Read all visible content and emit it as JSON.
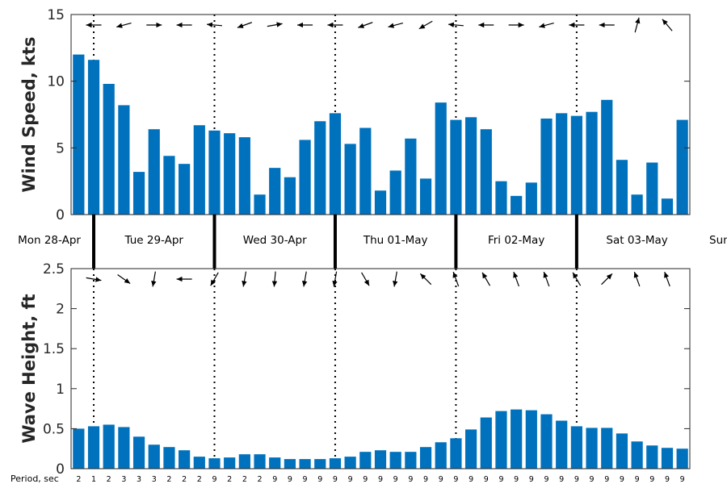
{
  "chart_data": [
    {
      "type": "bar",
      "name": "wind",
      "ylabel": "Wind Speed, kts",
      "ylim": [
        0,
        15
      ],
      "yticks": [
        0,
        5,
        10,
        15
      ],
      "color": "#0072BD",
      "values": [
        12.0,
        11.6,
        9.8,
        8.2,
        3.2,
        6.4,
        4.4,
        3.8,
        6.7,
        6.3,
        6.1,
        5.8,
        1.5,
        3.5,
        2.8,
        5.6,
        7.0,
        7.6,
        5.3,
        6.5,
        1.8,
        3.3,
        5.7,
        2.7,
        8.4,
        7.1,
        7.3,
        6.4,
        2.5,
        1.4,
        2.4,
        7.2,
        7.6,
        7.4,
        7.7,
        8.6,
        4.1,
        1.5,
        3.9,
        1.2,
        7.1
      ],
      "direction_arrows": [
        {
          "i": 1,
          "deg": 180
        },
        {
          "i": 3,
          "deg": 195
        },
        {
          "i": 5,
          "deg": 0
        },
        {
          "i": 7,
          "deg": 180
        },
        {
          "i": 9,
          "deg": 175
        },
        {
          "i": 11,
          "deg": 200
        },
        {
          "i": 13,
          "deg": 10
        },
        {
          "i": 15,
          "deg": 180
        },
        {
          "i": 17,
          "deg": 180
        },
        {
          "i": 19,
          "deg": 200
        },
        {
          "i": 21,
          "deg": 195
        },
        {
          "i": 23,
          "deg": 210
        },
        {
          "i": 25,
          "deg": 175
        },
        {
          "i": 27,
          "deg": 180
        },
        {
          "i": 29,
          "deg": 0
        },
        {
          "i": 31,
          "deg": 195
        },
        {
          "i": 33,
          "deg": 180
        },
        {
          "i": 35,
          "deg": 180
        },
        {
          "i": 37,
          "deg": 75
        },
        {
          "i": 39,
          "deg": 130
        }
      ]
    },
    {
      "type": "bar",
      "name": "waves",
      "ylabel": "Wave Height, ft",
      "ylim": [
        0,
        2.5
      ],
      "yticks": [
        0,
        0.5,
        1,
        1.5,
        2,
        2.5
      ],
      "color": "#0072BD",
      "values": [
        0.5,
        0.53,
        0.55,
        0.52,
        0.4,
        0.3,
        0.27,
        0.23,
        0.15,
        0.13,
        0.14,
        0.18,
        0.18,
        0.14,
        0.12,
        0.12,
        0.12,
        0.13,
        0.15,
        0.21,
        0.23,
        0.21,
        0.21,
        0.27,
        0.33,
        0.38,
        0.49,
        0.64,
        0.72,
        0.74,
        0.73,
        0.68,
        0.6,
        0.53,
        0.51,
        0.51,
        0.44,
        0.34,
        0.29,
        0.26,
        0.25
      ],
      "direction_arrows": [
        {
          "i": 1,
          "deg": -10
        },
        {
          "i": 3,
          "deg": -35
        },
        {
          "i": 5,
          "deg": -100
        },
        {
          "i": 7,
          "deg": 180
        },
        {
          "i": 9,
          "deg": -120
        },
        {
          "i": 11,
          "deg": -100
        },
        {
          "i": 13,
          "deg": -95
        },
        {
          "i": 15,
          "deg": -100
        },
        {
          "i": 17,
          "deg": -100
        },
        {
          "i": 19,
          "deg": -60
        },
        {
          "i": 21,
          "deg": -100
        },
        {
          "i": 23,
          "deg": 135
        },
        {
          "i": 25,
          "deg": 110
        },
        {
          "i": 27,
          "deg": 120
        },
        {
          "i": 29,
          "deg": 110
        },
        {
          "i": 31,
          "deg": 110
        },
        {
          "i": 33,
          "deg": 120
        },
        {
          "i": 35,
          "deg": 45
        },
        {
          "i": 37,
          "deg": 110
        },
        {
          "i": 39,
          "deg": 110
        }
      ]
    }
  ],
  "days": [
    "Mon 28-Apr",
    "Tue 29-Apr",
    "Wed 30-Apr",
    "Thu 01-May",
    "Fri 02-May",
    "Sat 03-May",
    "Sun"
  ],
  "day_boundaries": [
    1,
    9,
    17,
    25,
    33
  ],
  "period": {
    "title": "Period, sec",
    "values": [
      2,
      1,
      2,
      3,
      3,
      3,
      2,
      2,
      2,
      9,
      2,
      2,
      2,
      9,
      9,
      9,
      9,
      9,
      9,
      9,
      9,
      9,
      9,
      9,
      9,
      9,
      9,
      9,
      9,
      9,
      9,
      9,
      9,
      9,
      9,
      9,
      9,
      9,
      9,
      9,
      9
    ]
  }
}
